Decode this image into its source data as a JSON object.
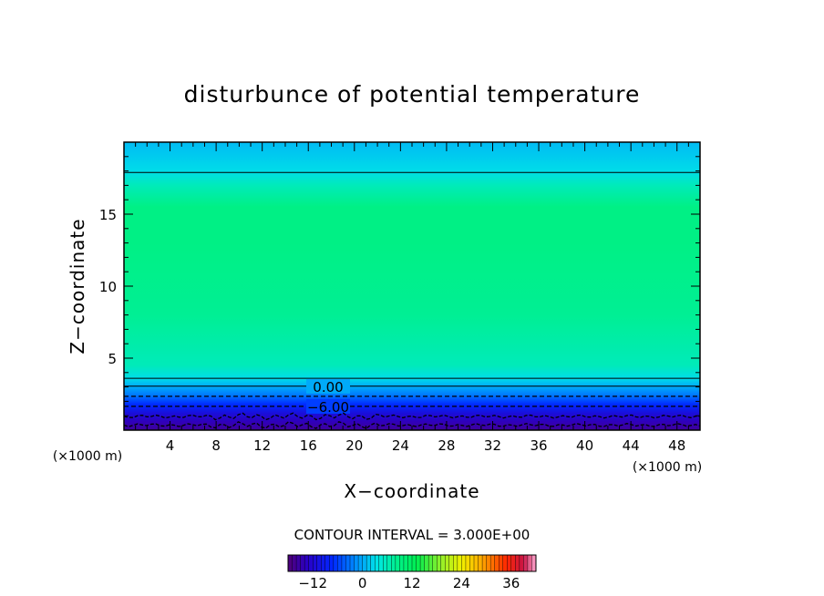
{
  "chart_data": {
    "type": "heatmap",
    "title": "disturbunce of potential temperature",
    "xlabel": "X−coordinate",
    "ylabel": "Z−coordinate",
    "x_unit": "(×1000 m)",
    "z_unit": "(×1000 m)",
    "xlim": [
      0,
      50
    ],
    "ylim": [
      0,
      20
    ],
    "x_ticks": [
      4,
      8,
      12,
      16,
      20,
      24,
      28,
      32,
      36,
      40,
      44,
      48
    ],
    "x_tick_labels": [
      "4",
      "8",
      "12",
      "16",
      "20",
      "24",
      "28",
      "32",
      "36",
      "40",
      "44",
      "48"
    ],
    "y_ticks": [
      5,
      10,
      15
    ],
    "y_tick_labels": [
      "5",
      "10",
      "15"
    ],
    "field_profile": [
      {
        "z": 0.0,
        "value": -16
      },
      {
        "z": 0.6,
        "value": -14
      },
      {
        "z": 1.2,
        "value": -11
      },
      {
        "z": 1.8,
        "value": -7
      },
      {
        "z": 2.4,
        "value": -3
      },
      {
        "z": 3.0,
        "value": 0
      },
      {
        "z": 3.6,
        "value": 3
      },
      {
        "z": 4.5,
        "value": 6
      },
      {
        "z": 8.0,
        "value": 8
      },
      {
        "z": 13.0,
        "value": 9
      },
      {
        "z": 15.5,
        "value": 9
      },
      {
        "z": 17.0,
        "value": 6
      },
      {
        "z": 18.0,
        "value": 3
      },
      {
        "z": 20.0,
        "value": 1
      }
    ],
    "contours": [
      {
        "z": 17.9,
        "style": "solid"
      },
      {
        "z": 3.6,
        "style": "solid"
      },
      {
        "z": 3.05,
        "style": "solid",
        "label": "0.00"
      },
      {
        "z": 2.35,
        "style": "dashed"
      },
      {
        "z": 1.65,
        "style": "dashed",
        "label": "−6.00"
      },
      {
        "z": 0.95,
        "style": "dashed-wavy"
      },
      {
        "z": 0.35,
        "style": "dashed-wavy"
      }
    ],
    "contour_interval_text": "CONTOUR INTERVAL = 3.000E+00",
    "colorbar": {
      "range": [
        -18,
        42
      ],
      "ticks": [
        -12,
        0,
        12,
        24,
        36
      ],
      "tick_labels": [
        "−12",
        "0",
        "12",
        "24",
        "36"
      ]
    }
  }
}
